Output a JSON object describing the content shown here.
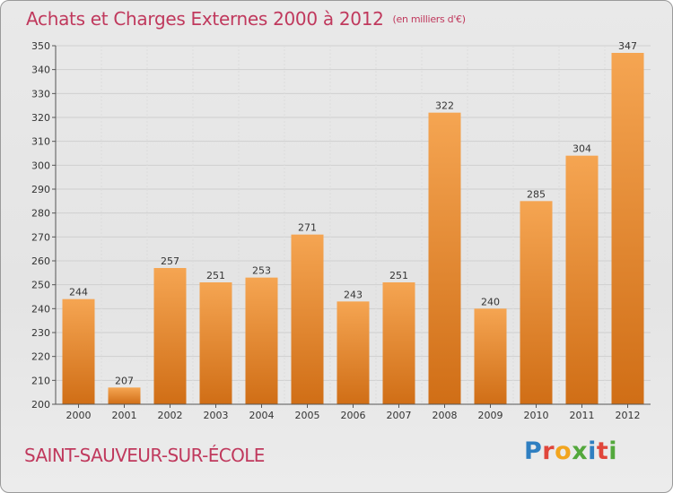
{
  "header": {
    "title": "Achats et Charges Externes 2000 à 2012",
    "unit": "(en milliers d'€)"
  },
  "footer": {
    "city": "SAINT-SAUVEUR-SUR-ÉCOLE",
    "logo": "Proxiti"
  },
  "colors": {
    "bar_light": "#f5a552",
    "bar_dark": "#d06e16",
    "title": "#c0395d",
    "grid": "#cfcfcf"
  },
  "chart_data": {
    "type": "bar",
    "title": "Achats et Charges Externes 2000 à 2012",
    "subtitle": "(en milliers d'€)",
    "xlabel": "",
    "ylabel": "",
    "categories": [
      "2000",
      "2001",
      "2002",
      "2003",
      "2004",
      "2005",
      "2006",
      "2007",
      "2008",
      "2009",
      "2010",
      "2011",
      "2012"
    ],
    "values": [
      244,
      207,
      257,
      251,
      253,
      271,
      243,
      251,
      322,
      240,
      285,
      304,
      347
    ],
    "ylim": [
      200,
      350
    ],
    "yticks": [
      200,
      210,
      220,
      230,
      240,
      250,
      260,
      270,
      280,
      290,
      300,
      310,
      320,
      330,
      340,
      350
    ],
    "grid": true,
    "legend": "none",
    "data_labels": true
  }
}
